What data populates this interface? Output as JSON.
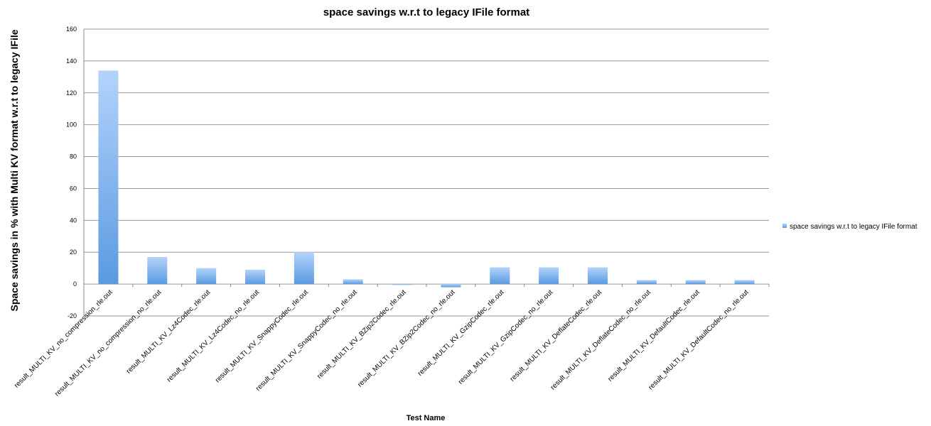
{
  "chart_data": {
    "type": "bar",
    "title": "space savings w.r.t to legacy IFile format",
    "xlabel": "Test Name",
    "ylabel": "Space savings in % with Multi KV format w.r.t to legacy IFile",
    "ylim": [
      -20,
      160
    ],
    "yticks": [
      -20,
      0,
      20,
      40,
      60,
      80,
      100,
      120,
      140,
      160
    ],
    "grid": true,
    "legend_position": "right",
    "categories": [
      "result_MULTI_KV_no_compression_rle.out",
      "result_MULTI_KV_no_compression_no_rle.out",
      "result_MULTI_KV_Lz4Codec_rle.out",
      "result_MULTI_KV_Lz4Codec_no_rle.out",
      "result_MULTI_KV_SnappyCodec_rle.out",
      "result_MULTI_KV_SnappyCodec_no_rle.out",
      "result_MULTI_KV_BZip2Codec_rle.out",
      "result_MULTI_KV_BZip2Codec_no_rle.out",
      "result_MULTI_KV_GzipCodec_rle.out",
      "result_MULTI_KV_GzipCodec_no_rle.out",
      "result_MULTI_KV_DeflateCodec_rle.out",
      "result_MULTI_KV_DeflateCodec_no_rle.out",
      "result_MULTI_KV_DefaultCodec_rle.out",
      "result_MULTI_KV_DefaultCodec_no_rle.out"
    ],
    "series": [
      {
        "name": "space savings w.r.t to legacy IFile format",
        "values": [
          134,
          17,
          10,
          9,
          20,
          3,
          -0.5,
          -2,
          10.5,
          10.5,
          10.5,
          2.5,
          2.5,
          2.5
        ],
        "color_light": "#b3d3fb",
        "color_dark": "#5a9ae0"
      }
    ]
  }
}
